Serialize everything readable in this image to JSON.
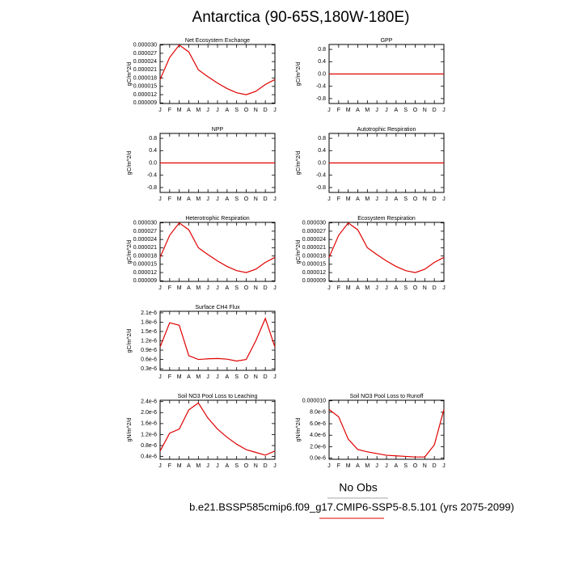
{
  "title": "Antarctica (90-65S,180W-180E)",
  "obs_label": "No Obs",
  "case_label": "b.e21.BSSP585cmip6.f09_g17.CMIP6-SSP5-8.5.101 (yrs 2075-2099)",
  "chart_data": [
    {
      "type": "line",
      "title": "Net Ecosystem Exchange",
      "ylabel": "gC/m^2/d",
      "color": "#e00000",
      "categories": [
        "J",
        "F",
        "M",
        "A",
        "M",
        "J",
        "J",
        "A",
        "S",
        "O",
        "N",
        "D",
        "J"
      ],
      "values": [
        1.75e-05,
        2.55e-05,
        3e-05,
        2.75e-05,
        2.1e-05,
        1.85e-05,
        1.62e-05,
        1.42e-05,
        1.27e-05,
        1.2e-05,
        1.32e-05,
        1.57e-05,
        1.75e-05
      ],
      "ylim": [
        8.8e-06,
        3.02e-05
      ],
      "yticks": [
        {
          "value": 9e-06,
          "label": "0.000009"
        },
        {
          "value": 1.2e-05,
          "label": "0.000012"
        },
        {
          "value": 1.5e-05,
          "label": "0.000015"
        },
        {
          "value": 1.8e-05,
          "label": "0.000018"
        },
        {
          "value": 2.1e-05,
          "label": "0.000021"
        },
        {
          "value": 2.4e-05,
          "label": "0.000024"
        },
        {
          "value": 2.7e-05,
          "label": "0.000027"
        },
        {
          "value": 3e-05,
          "label": "0.000030"
        }
      ]
    },
    {
      "type": "line",
      "title": "GPP",
      "ylabel": "gC/m^2/d",
      "color": "#e00000",
      "categories": [
        "J",
        "F",
        "M",
        "A",
        "M",
        "J",
        "J",
        "A",
        "S",
        "O",
        "N",
        "D",
        "J"
      ],
      "values": [
        0,
        0,
        0,
        0,
        0,
        0,
        0,
        0,
        0,
        0,
        0,
        0,
        0
      ],
      "ylim": [
        -0.96,
        0.96
      ],
      "yticks": [
        -0.8,
        -0.4,
        {
          "value": 0,
          "label": "0.0"
        },
        0.4,
        0.8
      ]
    },
    {
      "type": "line",
      "title": "NPP",
      "ylabel": "gC/m^2/d",
      "color": "#e00000",
      "categories": [
        "J",
        "F",
        "M",
        "A",
        "M",
        "J",
        "J",
        "A",
        "S",
        "O",
        "N",
        "D",
        "J"
      ],
      "values": [
        0,
        0,
        0,
        0,
        0,
        0,
        0,
        0,
        0,
        0,
        0,
        0,
        0
      ],
      "ylim": [
        -0.96,
        0.96
      ],
      "yticks": [
        -0.8,
        -0.4,
        {
          "value": 0,
          "label": "0.0"
        },
        0.4,
        0.8
      ]
    },
    {
      "type": "line",
      "title": "Autotrophic Respiration",
      "ylabel": "gC/m^2/d",
      "color": "#e00000",
      "categories": [
        "J",
        "F",
        "M",
        "A",
        "M",
        "J",
        "J",
        "A",
        "S",
        "O",
        "N",
        "D",
        "J"
      ],
      "values": [
        0,
        0,
        0,
        0,
        0,
        0,
        0,
        0,
        0,
        0,
        0,
        0,
        0
      ],
      "ylim": [
        -0.96,
        0.96
      ],
      "yticks": [
        -0.8,
        -0.4,
        {
          "value": 0,
          "label": "0.0"
        },
        0.4,
        0.8
      ]
    },
    {
      "type": "line",
      "title": "Heterotrophic Respiration",
      "ylabel": "gC/m^2/d",
      "color": "#e00000",
      "categories": [
        "J",
        "F",
        "M",
        "A",
        "M",
        "J",
        "J",
        "A",
        "S",
        "O",
        "N",
        "D",
        "J"
      ],
      "values": [
        1.75e-05,
        2.55e-05,
        3e-05,
        2.75e-05,
        2.1e-05,
        1.85e-05,
        1.62e-05,
        1.42e-05,
        1.27e-05,
        1.2e-05,
        1.32e-05,
        1.57e-05,
        1.75e-05
      ],
      "ylim": [
        8.8e-06,
        3.02e-05
      ],
      "yticks": [
        {
          "value": 9e-06,
          "label": "0.000009"
        },
        {
          "value": 1.2e-05,
          "label": "0.000012"
        },
        {
          "value": 1.5e-05,
          "label": "0.000015"
        },
        {
          "value": 1.8e-05,
          "label": "0.000018"
        },
        {
          "value": 2.1e-05,
          "label": "0.000021"
        },
        {
          "value": 2.4e-05,
          "label": "0.000024"
        },
        {
          "value": 2.7e-05,
          "label": "0.000027"
        },
        {
          "value": 3e-05,
          "label": "0.000030"
        }
      ]
    },
    {
      "type": "line",
      "title": "Ecosystem Respiration",
      "ylabel": "gC/m^2/d",
      "color": "#e00000",
      "categories": [
        "J",
        "F",
        "M",
        "A",
        "M",
        "J",
        "J",
        "A",
        "S",
        "O",
        "N",
        "D",
        "J"
      ],
      "values": [
        1.75e-05,
        2.55e-05,
        3e-05,
        2.75e-05,
        2.1e-05,
        1.85e-05,
        1.62e-05,
        1.42e-05,
        1.27e-05,
        1.2e-05,
        1.32e-05,
        1.57e-05,
        1.75e-05
      ],
      "ylim": [
        8.8e-06,
        3.02e-05
      ],
      "yticks": [
        {
          "value": 9e-06,
          "label": "0.000009"
        },
        {
          "value": 1.2e-05,
          "label": "0.000012"
        },
        {
          "value": 1.5e-05,
          "label": "0.000015"
        },
        {
          "value": 1.8e-05,
          "label": "0.000018"
        },
        {
          "value": 2.1e-05,
          "label": "0.000021"
        },
        {
          "value": 2.4e-05,
          "label": "0.000024"
        },
        {
          "value": 2.7e-05,
          "label": "0.000027"
        },
        {
          "value": 3e-05,
          "label": "0.000030"
        }
      ]
    },
    {
      "type": "line",
      "title": "Surface CH4 Flux",
      "ylabel": "gC/m^2/d",
      "color": "#e00000",
      "categories": [
        "J",
        "F",
        "M",
        "A",
        "M",
        "J",
        "J",
        "A",
        "S",
        "O",
        "N",
        "D",
        "J"
      ],
      "values": [
        1e-06,
        1.78e-06,
        1.7e-06,
        7.2e-07,
        6e-07,
        6.2e-07,
        6.3e-07,
        6.1e-07,
        5.5e-07,
        6e-07,
        1.2e-06,
        1.92e-06,
        1e-06
      ],
      "ylim": [
        2.5e-07,
        2.15e-06
      ],
      "yticks": [
        {
          "value": 3e-07,
          "label": "0.3e-6"
        },
        {
          "value": 6e-07,
          "label": "0.6e-6"
        },
        {
          "value": 9e-07,
          "label": "0.9e-6"
        },
        {
          "value": 1.2e-06,
          "label": "1.2e-6"
        },
        {
          "value": 1.5e-06,
          "label": "1.5e-6"
        },
        {
          "value": 1.8e-06,
          "label": "1.8e-6"
        },
        {
          "value": 2.1e-06,
          "label": "2.1e-6"
        }
      ]
    },
    {
      "type": "line",
      "title": "Soil NO3 Pool Loss to Leaching",
      "ylabel": "gN/m^2/d",
      "color": "#e00000",
      "categories": [
        "J",
        "F",
        "M",
        "A",
        "M",
        "J",
        "J",
        "A",
        "S",
        "O",
        "N",
        "D",
        "J"
      ],
      "values": [
        6e-07,
        1.25e-06,
        1.4e-06,
        2.1e-06,
        2.35e-06,
        1.8e-06,
        1.4e-06,
        1.1e-06,
        8.5e-07,
        6.5e-07,
        5.5e-07,
        4.5e-07,
        6e-07
      ],
      "ylim": [
        3e-07,
        2.45e-06
      ],
      "yticks": [
        {
          "value": 4e-07,
          "label": "0.4e-6"
        },
        {
          "value": 8e-07,
          "label": "0.8e-6"
        },
        {
          "value": 1.2e-06,
          "label": "1.2e-6"
        },
        {
          "value": 1.6e-06,
          "label": "1.6e-6"
        },
        {
          "value": 2e-06,
          "label": "2.0e-6"
        },
        {
          "value": 2.4e-06,
          "label": "2.4e-6"
        }
      ]
    },
    {
      "type": "line",
      "title": "Soil NO3 Pool Loss to Runoff",
      "ylabel": "gN/m^2/d",
      "color": "#e00000",
      "categories": [
        "J",
        "F",
        "M",
        "A",
        "M",
        "J",
        "J",
        "A",
        "S",
        "O",
        "N",
        "D",
        "J"
      ],
      "values": [
        8.5e-06,
        7.2e-06,
        3.3e-06,
        1.5e-06,
        1.1e-06,
        8e-07,
        5e-07,
        4e-07,
        3e-07,
        2e-07,
        2e-07,
        2.3e-06,
        8.5e-06
      ],
      "ylim": [
        -2e-07,
        1.01e-05
      ],
      "yticks": [
        {
          "value": 0,
          "label": "0.0e-6"
        },
        {
          "value": 2e-06,
          "label": "2.0e-6"
        },
        {
          "value": 4e-06,
          "label": "4.0e-6"
        },
        {
          "value": 6e-06,
          "label": "6.0e-6"
        },
        {
          "value": 8e-06,
          "label": "8.0e-6"
        },
        {
          "value": 1e-05,
          "label": "0.000010"
        }
      ]
    }
  ]
}
